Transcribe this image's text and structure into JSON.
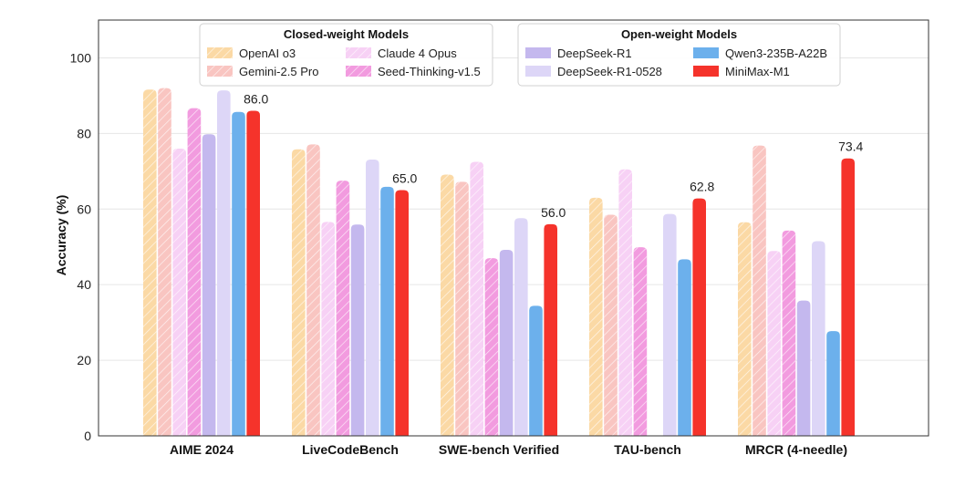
{
  "chart_data": {
    "type": "bar",
    "ylabel": "Accuracy (%)",
    "xlabel": "",
    "ylim": [
      0,
      110
    ],
    "yticks": [
      0,
      20,
      40,
      60,
      80,
      100
    ],
    "grid": true,
    "categories": [
      "AIME 2024",
      "LiveCodeBench",
      "SWE-bench Verified",
      "TAU-bench",
      "MRCR (4-needle)"
    ],
    "series": [
      {
        "name": "OpenAI o3",
        "group": "closed",
        "color": "#fbd9a5",
        "hatched": true,
        "values": [
          91.6,
          75.8,
          69.1,
          63.0,
          56.5
        ]
      },
      {
        "name": "Gemini-2.5 Pro",
        "group": "closed",
        "color": "#f9c5c1",
        "hatched": true,
        "values": [
          92.0,
          77.1,
          67.2,
          58.5,
          76.8
        ]
      },
      {
        "name": "Claude 4 Opus",
        "group": "closed",
        "color": "#f7d1f5",
        "hatched": true,
        "values": [
          76.0,
          56.6,
          72.5,
          70.5,
          48.9
        ]
      },
      {
        "name": "Seed-Thinking-v1.5",
        "group": "closed",
        "color": "#f29bdf",
        "hatched": true,
        "values": [
          86.7,
          67.5,
          47.0,
          49.9,
          54.3
        ]
      },
      {
        "name": "DeepSeek-R1",
        "group": "open",
        "color": "#c4b8ee",
        "hatched": false,
        "values": [
          79.8,
          55.9,
          49.2,
          0,
          35.8
        ]
      },
      {
        "name": "DeepSeek-R1-0528",
        "group": "open",
        "color": "#ddd6f7",
        "hatched": false,
        "values": [
          91.4,
          73.1,
          57.6,
          58.7,
          51.5
        ]
      },
      {
        "name": "Qwen3-235B-A22B",
        "group": "open",
        "color": "#6cb0ec",
        "hatched": false,
        "values": [
          85.7,
          65.9,
          34.4,
          46.7,
          27.7
        ]
      },
      {
        "name": "MiniMax-M1",
        "group": "open",
        "color": "#f5332b",
        "hatched": false,
        "values": [
          86.0,
          65.0,
          56.0,
          62.8,
          73.4
        ]
      }
    ],
    "data_labels": [
      {
        "series": "MiniMax-M1",
        "category": "AIME 2024",
        "text": "86.0"
      },
      {
        "series": "MiniMax-M1",
        "category": "LiveCodeBench",
        "text": "65.0"
      },
      {
        "series": "MiniMax-M1",
        "category": "SWE-bench Verified",
        "text": "56.0"
      },
      {
        "series": "MiniMax-M1",
        "category": "TAU-bench",
        "text": "62.8"
      },
      {
        "series": "MiniMax-M1",
        "category": "MRCR (4-needle)",
        "text": "73.4"
      }
    ],
    "legends": [
      {
        "title": "Closed-weight Models",
        "placement": "top-center-left",
        "items": [
          "OpenAI o3",
          "Gemini-2.5 Pro",
          "Claude 4 Opus",
          "Seed-Thinking-v1.5"
        ]
      },
      {
        "title": "Open-weight Models",
        "placement": "top-center-right",
        "items": [
          "DeepSeek-R1",
          "DeepSeek-R1-0528",
          "Qwen3-235B-A22B",
          "MiniMax-M1"
        ]
      }
    ]
  }
}
